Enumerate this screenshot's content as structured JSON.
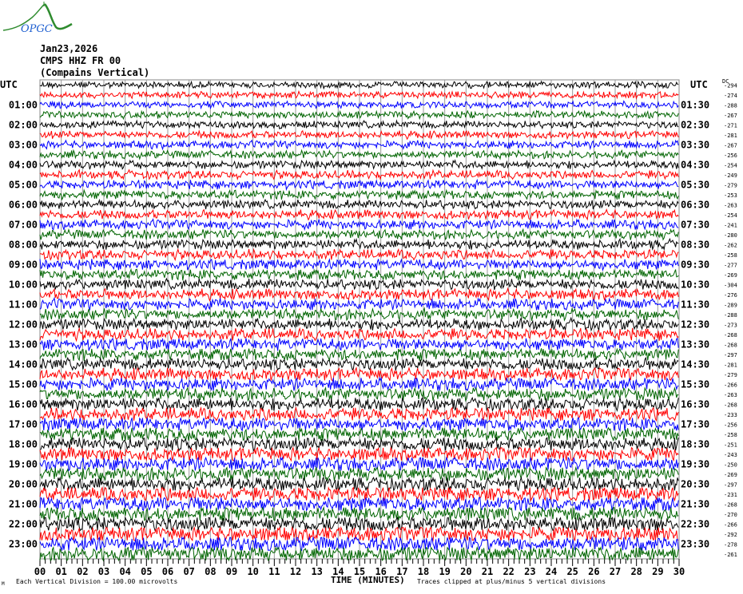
{
  "header": {
    "logo_text": "OPGC",
    "date": "Jan23,2026",
    "station": "CMPS HHZ FR 00",
    "location": "(Compains Vertical)"
  },
  "footer": {
    "corner_mark": "M",
    "scale_note": "Each Vertical Division =  100.00 microvolts",
    "clip_note": "Traces clipped at plus/minus 5 vertical divisions"
  },
  "chart_data": {
    "type": "line",
    "subtype": "helicorder",
    "xlabel": "TIME (MINUTES)",
    "xlim": [
      0,
      30
    ],
    "x_ticks": [
      "00",
      "01",
      "02",
      "03",
      "04",
      "05",
      "06",
      "07",
      "08",
      "09",
      "10",
      "11",
      "12",
      "13",
      "14",
      "15",
      "16",
      "17",
      "18",
      "19",
      "20",
      "21",
      "22",
      "23",
      "24",
      "25",
      "26",
      "27",
      "28",
      "29",
      "30"
    ],
    "left_axis_title": "UTC",
    "right_axis_title": "UTC",
    "dc_label": "DC",
    "left_labels": [
      "01:00",
      "02:00",
      "03:00",
      "04:00",
      "05:00",
      "06:00",
      "07:00",
      "08:00",
      "09:00",
      "10:00",
      "11:00",
      "12:00",
      "13:00",
      "14:00",
      "15:00",
      "16:00",
      "17:00",
      "18:00",
      "19:00",
      "20:00",
      "21:00",
      "22:00",
      "23:00"
    ],
    "right_labels": [
      "01:30",
      "02:30",
      "03:30",
      "04:30",
      "05:30",
      "06:30",
      "07:30",
      "08:30",
      "09:30",
      "10:30",
      "11:30",
      "12:30",
      "13:30",
      "14:30",
      "15:30",
      "16:30",
      "17:30",
      "18:30",
      "19:30",
      "20:30",
      "21:30",
      "22:30",
      "23:30"
    ],
    "dc_offsets": [
      "-294",
      "-274",
      "-288",
      "-267",
      "-271",
      "-281",
      "-267",
      "-256",
      "-254",
      "-249",
      "-279",
      "-253",
      "-263",
      "-254",
      "-241",
      "-280",
      "-262",
      "-258",
      "-277",
      "-269",
      "-304",
      "-276",
      "-289",
      "-288",
      "-273",
      "-268",
      "-268",
      "-297",
      "-281",
      "-279",
      "-266",
      "-263",
      "-268",
      "-233",
      "-256",
      "-258",
      "-251",
      "-243",
      "-250",
      "-269",
      "-297",
      "-231",
      "-268",
      "-270",
      "-266",
      "-292",
      "-278",
      "-261"
    ],
    "trace_count": 48,
    "minutes_per_trace": 30,
    "trace_colors": [
      "#000000",
      "#ff0000",
      "#0000ff",
      "#006400"
    ],
    "grid": true,
    "grid_color": "#999999"
  }
}
